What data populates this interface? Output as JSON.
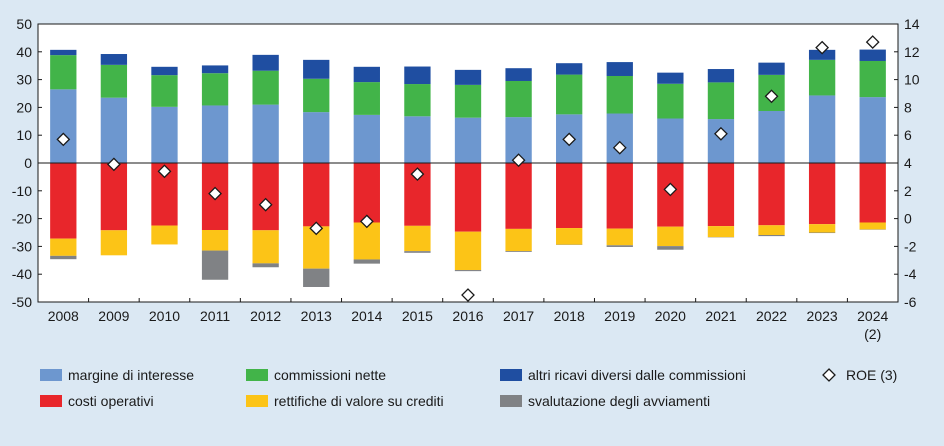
{
  "chart_data": {
    "type": "bar",
    "stacked": true,
    "categories": [
      "2008",
      "2009",
      "2010",
      "2011",
      "2012",
      "2013",
      "2014",
      "2015",
      "2016",
      "2017",
      "2018",
      "2019",
      "2020",
      "2021",
      "2022",
      "2023",
      "2024"
    ],
    "category_sublabels": {
      "2024": "(2)"
    },
    "ylim_left": [
      -50,
      50
    ],
    "yticks_left": [
      50,
      40,
      30,
      20,
      10,
      0,
      -10,
      -20,
      -30,
      -40,
      -50
    ],
    "ylim_right": [
      -6,
      14
    ],
    "yticks_right": [
      14,
      12,
      10,
      8,
      6,
      4,
      2,
      0,
      -2,
      -4,
      -6
    ],
    "grid": false,
    "legend_position": "bottom",
    "series": [
      {
        "name": "margine di interesse",
        "color": "#6d97cf",
        "axis": "left",
        "values": [
          26.5,
          23.5,
          20.2,
          20.7,
          21.0,
          18.3,
          17.3,
          16.8,
          16.3,
          16.5,
          17.5,
          17.8,
          16.0,
          15.8,
          18.7,
          24.3,
          23.7
        ]
      },
      {
        "name": "commissioni nette",
        "color": "#42b449",
        "axis": "left",
        "values": [
          12.3,
          11.8,
          11.4,
          11.6,
          12.2,
          12.0,
          11.8,
          11.6,
          11.8,
          13.0,
          14.3,
          13.5,
          12.5,
          13.2,
          13.0,
          12.8,
          13.0
        ]
      },
      {
        "name": "altri ricavi diversi dalle commissioni",
        "color": "#1f4ea1",
        "axis": "left",
        "values": [
          1.9,
          3.9,
          3.0,
          2.8,
          5.7,
          6.8,
          5.5,
          6.3,
          5.4,
          4.6,
          4.1,
          5.0,
          4.0,
          4.8,
          4.4,
          3.6,
          4.1
        ]
      },
      {
        "name": "costi operativi",
        "color": "#e8262b",
        "axis": "left",
        "values": [
          -27.2,
          -24.2,
          -22.5,
          -24.1,
          -24.2,
          -22.8,
          -21.4,
          -22.6,
          -24.7,
          -23.7,
          -23.4,
          -23.6,
          -22.9,
          -22.7,
          -22.4,
          -22.0,
          -21.4
        ]
      },
      {
        "name": "rettifiche di valore su crediti",
        "color": "#fcc417",
        "axis": "left",
        "values": [
          -6.2,
          -9.0,
          -6.8,
          -7.4,
          -11.9,
          -15.2,
          -13.3,
          -9.1,
          -13.8,
          -8.0,
          -6.0,
          -6.0,
          -7.0,
          -4.0,
          -3.5,
          -3.0,
          -2.5
        ]
      },
      {
        "name": "svalutazione degli avviamenti",
        "color": "#808285",
        "axis": "left",
        "values": [
          -1.2,
          0,
          0,
          -10.5,
          -1.4,
          -6.6,
          -1.5,
          -0.6,
          -0.4,
          -0.3,
          -0.1,
          -0.6,
          -1.3,
          -0.1,
          -0.4,
          -0.2,
          -0.1
        ]
      }
    ],
    "roe": {
      "name": "ROE (3)",
      "axis": "right",
      "marker": "diamond",
      "values": [
        5.7,
        3.9,
        3.4,
        1.8,
        1.0,
        -0.7,
        -0.2,
        3.2,
        -5.5,
        4.2,
        5.7,
        5.1,
        2.1,
        6.1,
        8.8,
        12.3,
        12.7
      ]
    },
    "legend_rows": [
      [
        "margine di interesse",
        "commissioni nette",
        "altri ricavi diversi dalle commissioni",
        "ROE (3)"
      ],
      [
        "costi operativi",
        "rettifiche di valore su crediti",
        "svalutazione degli avviamenti"
      ]
    ]
  }
}
